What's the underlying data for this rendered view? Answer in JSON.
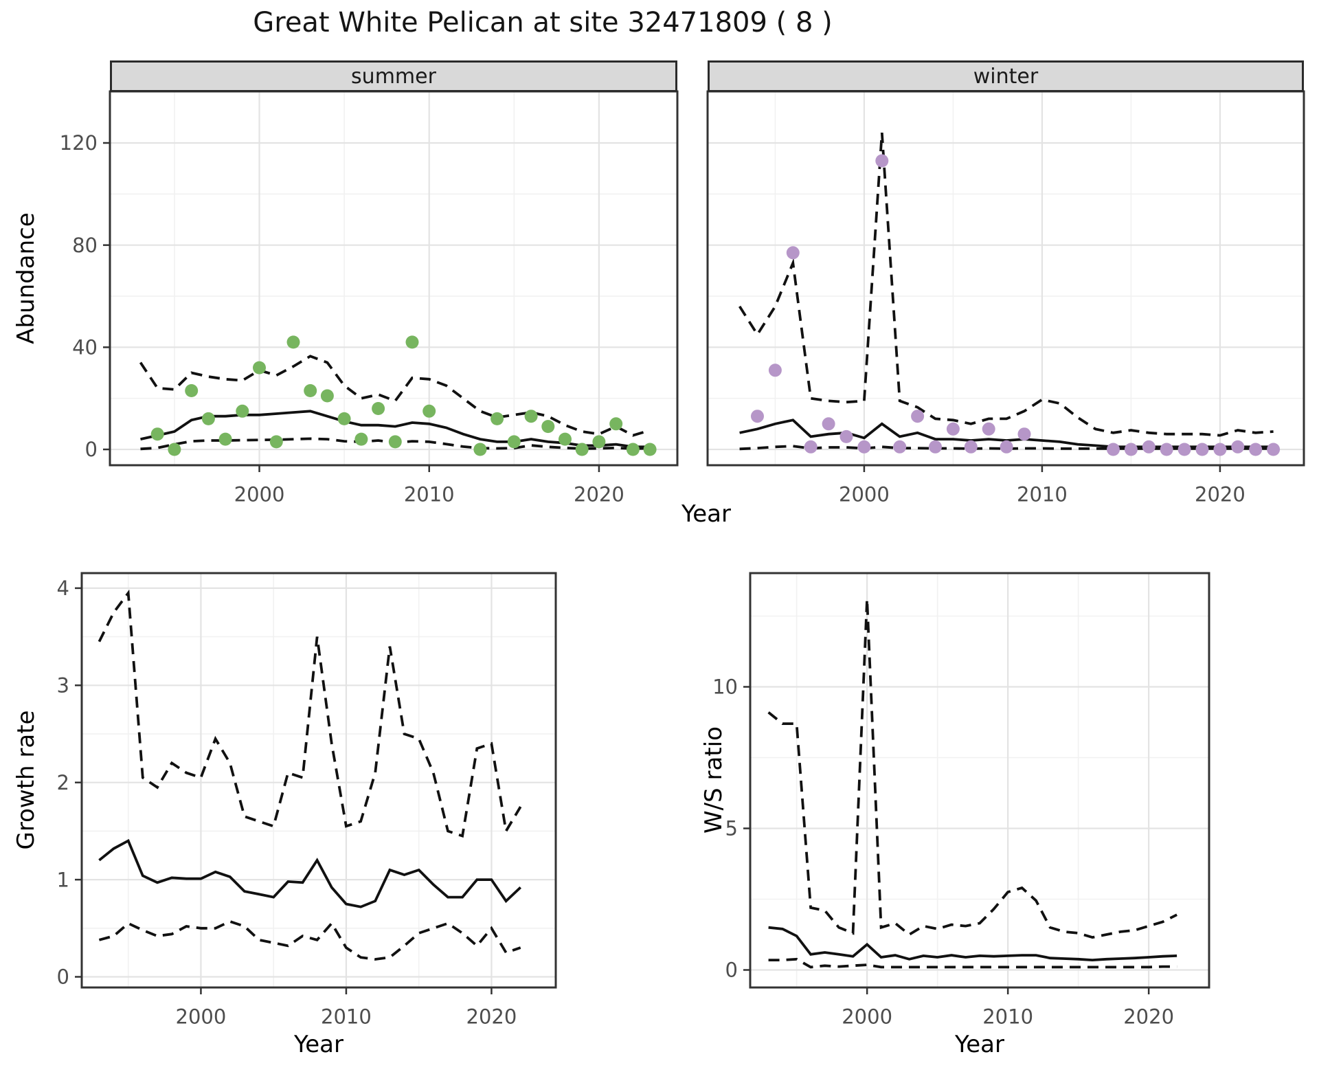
{
  "title": "Great White Pelican at site 32471809 ( 8 )",
  "colors": {
    "summer_points": "#77b55f",
    "winter_points": "#b696c8",
    "line": "#111111",
    "panel_border": "#333333",
    "strip_bg": "#d9d9d9",
    "grid_major": "#e3e3e3",
    "grid_minor": "#f1f1f1",
    "tick_text": "#4d4d4d"
  },
  "chart_data": [
    {
      "id": "abundance-summer",
      "type": "line",
      "facet_label": "summer",
      "xlabel": "Year",
      "ylabel": "Abundance",
      "x_ticks": [
        2000,
        2010,
        2020
      ],
      "x_minor": [
        1995,
        2005,
        2015
      ],
      "y_ticks": [
        0,
        40,
        80,
        120
      ],
      "y_minor": [
        20,
        60,
        100
      ],
      "show_y_labels": true,
      "xlim": [
        1991.2,
        2024.6
      ],
      "ylim": [
        -6.2,
        140
      ],
      "legend": "none",
      "grid": true,
      "points": {
        "years": [
          1994,
          1995,
          1996,
          1997,
          1998,
          1999,
          2000,
          2001,
          2002,
          2003,
          2004,
          2005,
          2006,
          2007,
          2008,
          2009,
          2010,
          2013,
          2014,
          2015,
          2016,
          2017,
          2018,
          2019,
          2020,
          2021,
          2022,
          2023
        ],
        "values": [
          6,
          0,
          23,
          12,
          4,
          15,
          32,
          3,
          42,
          23,
          21,
          12,
          4,
          16,
          3,
          42,
          15,
          0,
          12,
          3,
          13,
          9,
          4,
          0,
          3,
          10,
          0,
          0
        ]
      },
      "series": [
        {
          "name": "fit",
          "style": "solid",
          "years": [
            1993,
            1994,
            1995,
            1996,
            1997,
            1998,
            1999,
            2000,
            2001,
            2002,
            2003,
            2004,
            2005,
            2006,
            2007,
            2008,
            2009,
            2010,
            2011,
            2012,
            2013,
            2014,
            2015,
            2016,
            2017,
            2018,
            2019,
            2020,
            2021,
            2022,
            2023
          ],
          "values": [
            4,
            5.5,
            7,
            11.5,
            13,
            13,
            13.5,
            13.5,
            14,
            14.5,
            15,
            13,
            11,
            9.5,
            9.5,
            9,
            10.5,
            10,
            8.5,
            6,
            4,
            3,
            3,
            4,
            3,
            2.5,
            1.5,
            1.5,
            2,
            1,
            1
          ]
        },
        {
          "name": "upper_ci",
          "style": "dashed",
          "years": [
            1993,
            1994,
            1995,
            1996,
            1997,
            1998,
            1999,
            2000,
            2001,
            2002,
            2003,
            2004,
            2005,
            2006,
            2007,
            2008,
            2009,
            2010,
            2011,
            2012,
            2013,
            2014,
            2015,
            2016,
            2017,
            2018,
            2019,
            2020,
            2021,
            2022,
            2023
          ],
          "values": [
            34,
            24,
            23.5,
            30,
            28.5,
            27.5,
            27,
            31,
            29,
            32.5,
            36.5,
            34,
            25,
            20,
            21.5,
            19,
            28,
            27.5,
            25,
            20,
            15,
            12.5,
            13.5,
            14.5,
            13,
            9.5,
            7,
            6,
            9,
            5.5,
            7.5
          ]
        },
        {
          "name": "lower_ci",
          "style": "dashed",
          "years": [
            1993,
            1994,
            1995,
            1996,
            1997,
            1998,
            1999,
            2000,
            2001,
            2002,
            2003,
            2004,
            2005,
            2006,
            2007,
            2008,
            2009,
            2010,
            2011,
            2012,
            2013,
            2014,
            2015,
            2016,
            2017,
            2018,
            2019,
            2020,
            2021,
            2022,
            2023
          ],
          "values": [
            0.2,
            0.6,
            2,
            3.2,
            3.5,
            3.5,
            3.6,
            3.7,
            3.8,
            4,
            4.2,
            4,
            3.2,
            3,
            3.5,
            2.6,
            3.2,
            3,
            2.1,
            1.1,
            0.5,
            0.4,
            0.5,
            1.6,
            1,
            0.6,
            0.3,
            0.4,
            0.6,
            0.3,
            0.4
          ]
        }
      ]
    },
    {
      "id": "abundance-winter",
      "type": "line",
      "facet_label": "winter",
      "xlabel": "Year",
      "ylabel": "Abundance",
      "x_ticks": [
        2000,
        2010,
        2020
      ],
      "x_minor": [
        1995,
        2005,
        2015
      ],
      "y_ticks": [
        0,
        40,
        80,
        120
      ],
      "y_minor": [
        20,
        60,
        100
      ],
      "show_y_labels": false,
      "xlim": [
        1991.2,
        2024.7
      ],
      "ylim": [
        -6.2,
        140
      ],
      "legend": "none",
      "grid": true,
      "points": {
        "years": [
          1994,
          1995,
          1996,
          1997,
          1998,
          1999,
          2000,
          2001,
          2002,
          2003,
          2004,
          2005,
          2006,
          2007,
          2008,
          2009,
          2014,
          2015,
          2016,
          2017,
          2018,
          2019,
          2020,
          2021,
          2022,
          2023
        ],
        "values": [
          13,
          31,
          77,
          1,
          10,
          5,
          1,
          113,
          1,
          13,
          1,
          8,
          1,
          8,
          1,
          6,
          0,
          0,
          1,
          0,
          0,
          0,
          0,
          1,
          0,
          0
        ]
      },
      "series": [
        {
          "name": "fit",
          "style": "solid",
          "years": [
            1993,
            1994,
            1995,
            1996,
            1997,
            1998,
            1999,
            2000,
            2001,
            2002,
            2003,
            2004,
            2005,
            2006,
            2007,
            2008,
            2009,
            2010,
            2011,
            2012,
            2013,
            2014,
            2015,
            2016,
            2017,
            2018,
            2019,
            2020,
            2021,
            2022,
            2023
          ],
          "values": [
            6.5,
            8,
            10,
            11.5,
            5,
            6,
            6.5,
            4.5,
            10,
            5,
            6.5,
            4,
            4,
            3.5,
            4,
            3.5,
            4,
            3.5,
            3,
            2,
            1.5,
            1,
            1,
            1,
            1,
            1,
            1,
            1,
            1,
            1,
            1
          ]
        },
        {
          "name": "upper_ci",
          "style": "dashed",
          "years": [
            1993,
            1994,
            1995,
            1996,
            1997,
            1998,
            1999,
            2000,
            2001,
            2002,
            2003,
            2004,
            2005,
            2006,
            2007,
            2008,
            2009,
            2010,
            2011,
            2012,
            2013,
            2014,
            2015,
            2016,
            2017,
            2018,
            2019,
            2020,
            2021,
            2022,
            2023
          ],
          "values": [
            56,
            45,
            56,
            73,
            20,
            19,
            18.5,
            19,
            124,
            19,
            16.5,
            12,
            11.5,
            10,
            12,
            12,
            15,
            19.5,
            18,
            12.5,
            8,
            6.5,
            7.5,
            6.5,
            6,
            6,
            6,
            5.5,
            7.5,
            6.5,
            7
          ]
        },
        {
          "name": "lower_ci",
          "style": "dashed",
          "years": [
            1993,
            1994,
            1995,
            1996,
            1997,
            1998,
            1999,
            2000,
            2001,
            2002,
            2003,
            2004,
            2005,
            2006,
            2007,
            2008,
            2009,
            2010,
            2011,
            2012,
            2013,
            2014,
            2015,
            2016,
            2017,
            2018,
            2019,
            2020,
            2021,
            2022,
            2023
          ],
          "values": [
            0.2,
            0.5,
            1,
            1.3,
            0.4,
            0.8,
            0.8,
            0.4,
            1,
            0.5,
            0.5,
            0.4,
            0.4,
            0.3,
            0.4,
            0.3,
            0.4,
            0.4,
            0.3,
            0.3,
            0.3,
            0.3,
            0.3,
            0.3,
            0.3,
            0.3,
            0.3,
            0.3,
            0.3,
            0.3,
            0.3
          ]
        }
      ]
    },
    {
      "id": "growth-rate",
      "type": "line",
      "facet_label": "",
      "xlabel": "Year",
      "ylabel": "Growth rate",
      "x_ticks": [
        2000,
        2010,
        2020
      ],
      "x_minor": [
        1995,
        2005,
        2015
      ],
      "y_ticks": [
        0,
        1,
        2,
        3,
        4
      ],
      "y_minor": [
        0.5,
        1.5,
        2.5,
        3.5
      ],
      "show_y_labels": true,
      "xlim": [
        1991.8,
        2024.4
      ],
      "ylim": [
        -0.11,
        4.15
      ],
      "legend": "none",
      "grid": true,
      "points": null,
      "series": [
        {
          "name": "fit",
          "style": "solid",
          "years": [
            1993,
            1994,
            1995,
            1996,
            1997,
            1998,
            1999,
            2000,
            2001,
            2002,
            2003,
            2004,
            2005,
            2006,
            2007,
            2008,
            2009,
            2010,
            2011,
            2012,
            2013,
            2014,
            2015,
            2016,
            2017,
            2018,
            2019,
            2020,
            2021,
            2022
          ],
          "values": [
            1.2,
            1.32,
            1.4,
            1.04,
            0.97,
            1.02,
            1.01,
            1.01,
            1.08,
            1.03,
            0.88,
            0.85,
            0.82,
            0.98,
            0.97,
            1.2,
            0.92,
            0.75,
            0.72,
            0.78,
            1.1,
            1.05,
            1.1,
            0.95,
            0.82,
            0.82,
            1.0,
            1.0,
            0.78,
            0.92
          ]
        },
        {
          "name": "upper_ci",
          "style": "dashed",
          "years": [
            1993,
            1994,
            1995,
            1996,
            1997,
            1998,
            1999,
            2000,
            2001,
            2002,
            2003,
            2004,
            2005,
            2006,
            2007,
            2008,
            2009,
            2010,
            2011,
            2012,
            2013,
            2014,
            2015,
            2016,
            2017,
            2018,
            2019,
            2020,
            2021,
            2022
          ],
          "values": [
            3.45,
            3.75,
            3.95,
            2.05,
            1.95,
            2.2,
            2.1,
            2.05,
            2.45,
            2.2,
            1.65,
            1.6,
            1.55,
            2.1,
            2.05,
            3.5,
            2.4,
            1.55,
            1.6,
            2.1,
            3.4,
            2.5,
            2.45,
            2.1,
            1.5,
            1.45,
            2.35,
            2.4,
            1.5,
            1.75
          ]
        },
        {
          "name": "lower_ci",
          "style": "dashed",
          "years": [
            1993,
            1994,
            1995,
            1996,
            1997,
            1998,
            1999,
            2000,
            2001,
            2002,
            2003,
            2004,
            2005,
            2006,
            2007,
            2008,
            2009,
            2010,
            2011,
            2012,
            2013,
            2014,
            2015,
            2016,
            2017,
            2018,
            2019,
            2020,
            2021,
            2022
          ],
          "values": [
            0.38,
            0.42,
            0.55,
            0.48,
            0.42,
            0.44,
            0.52,
            0.5,
            0.5,
            0.57,
            0.52,
            0.38,
            0.35,
            0.32,
            0.42,
            0.38,
            0.55,
            0.3,
            0.2,
            0.18,
            0.2,
            0.32,
            0.45,
            0.5,
            0.55,
            0.45,
            0.32,
            0.5,
            0.25,
            0.3
          ]
        }
      ]
    },
    {
      "id": "ws-ratio",
      "type": "line",
      "facet_label": "",
      "xlabel": "Year",
      "ylabel": "W/S ratio",
      "x_ticks": [
        2000,
        2010,
        2020
      ],
      "x_minor": [
        1995,
        2005,
        2015
      ],
      "y_ticks": [
        0,
        5,
        10
      ],
      "y_minor": [
        2.5,
        7.5,
        12.5
      ],
      "show_y_labels": true,
      "xlim": [
        1991.7,
        2024.3
      ],
      "ylim": [
        -0.62,
        14.0
      ],
      "legend": "none",
      "grid": true,
      "points": null,
      "series": [
        {
          "name": "fit",
          "style": "solid",
          "years": [
            1993,
            1994,
            1995,
            1996,
            1997,
            1998,
            1999,
            2000,
            2001,
            2002,
            2003,
            2004,
            2005,
            2006,
            2007,
            2008,
            2009,
            2010,
            2011,
            2012,
            2013,
            2014,
            2015,
            2016,
            2017,
            2018,
            2019,
            2020,
            2021,
            2022
          ],
          "values": [
            1.5,
            1.45,
            1.2,
            0.55,
            0.62,
            0.55,
            0.48,
            0.9,
            0.45,
            0.52,
            0.38,
            0.5,
            0.45,
            0.52,
            0.45,
            0.5,
            0.48,
            0.5,
            0.52,
            0.52,
            0.42,
            0.4,
            0.38,
            0.35,
            0.38,
            0.4,
            0.42,
            0.45,
            0.48,
            0.5
          ]
        },
        {
          "name": "upper_ci",
          "style": "dashed",
          "years": [
            1993,
            1994,
            1995,
            1996,
            1997,
            1998,
            1999,
            2000,
            2001,
            2002,
            2003,
            2004,
            2005,
            2006,
            2007,
            2008,
            2009,
            2010,
            2011,
            2012,
            2013,
            2014,
            2015,
            2016,
            2017,
            2018,
            2019,
            2020,
            2021,
            2022
          ],
          "values": [
            9.1,
            8.7,
            8.7,
            2.2,
            2.1,
            1.5,
            1.3,
            13.1,
            1.5,
            1.65,
            1.25,
            1.55,
            1.45,
            1.6,
            1.55,
            1.65,
            2.15,
            2.75,
            2.9,
            2.45,
            1.5,
            1.35,
            1.3,
            1.15,
            1.25,
            1.35,
            1.4,
            1.55,
            1.7,
            1.95
          ]
        },
        {
          "name": "lower_ci",
          "style": "dashed",
          "years": [
            1993,
            1994,
            1995,
            1996,
            1997,
            1998,
            1999,
            2000,
            2001,
            2002,
            2003,
            2004,
            2005,
            2006,
            2007,
            2008,
            2009,
            2010,
            2011,
            2012,
            2013,
            2014,
            2015,
            2016,
            2017,
            2018,
            2019,
            2020,
            2021,
            2022
          ],
          "values": [
            0.35,
            0.35,
            0.38,
            0.1,
            0.15,
            0.12,
            0.15,
            0.18,
            0.1,
            0.1,
            0.1,
            0.1,
            0.1,
            0.1,
            0.1,
            0.1,
            0.1,
            0.1,
            0.1,
            0.1,
            0.1,
            0.1,
            0.1,
            0.1,
            0.1,
            0.1,
            0.1,
            0.1,
            0.12,
            0.12
          ]
        }
      ]
    }
  ]
}
